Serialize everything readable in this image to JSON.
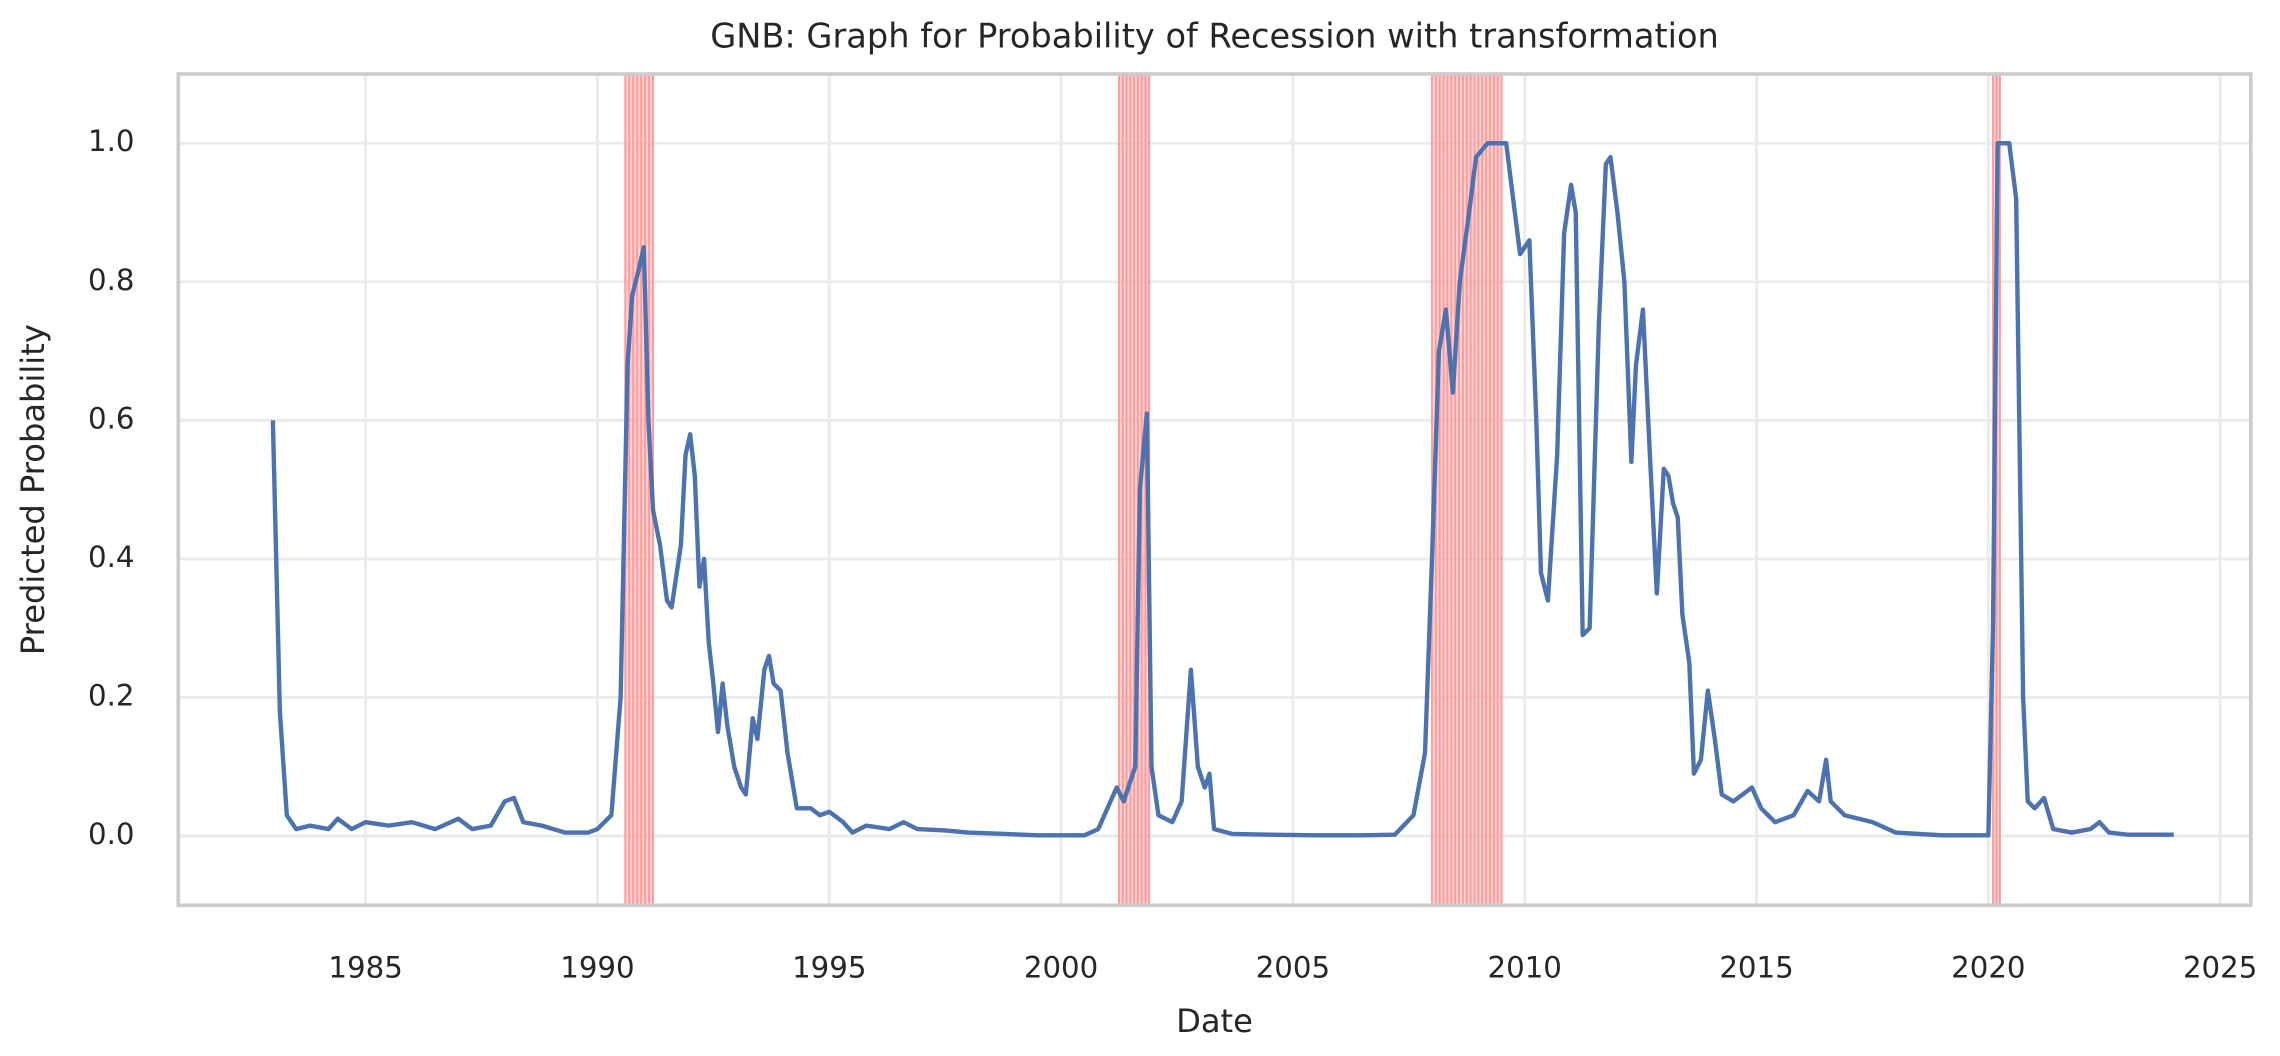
{
  "chart_data": {
    "type": "line",
    "title": "GNB: Graph for Probability of Recession with transformation",
    "x_label": "Date",
    "y_label": "Predicted Probability",
    "xlim": [
      1980.96,
      2025.66
    ],
    "ylim": [
      -0.1,
      1.1
    ],
    "xticks": [
      1985,
      1990,
      1995,
      2000,
      2005,
      2010,
      2015,
      2020,
      2025
    ],
    "yticks": [
      {
        "value": 0,
        "label": "0.0"
      },
      0.2,
      0.4,
      0.6,
      0.8,
      {
        "value": 1,
        "label": "1.0"
      }
    ],
    "grid": true,
    "recession_color": "#ff9a9a",
    "recessions": [
      [
        1990.6,
        1991.2
      ],
      [
        2001.25,
        2001.9
      ],
      [
        2008.0,
        2009.5
      ],
      [
        2020.1,
        2020.25
      ]
    ],
    "x": [
      1983.0,
      1983.15,
      1983.3,
      1983.5,
      1983.8,
      1984.2,
      1984.4,
      1984.7,
      1985.0,
      1985.5,
      1986.0,
      1986.5,
      1987.0,
      1987.3,
      1987.7,
      1988.0,
      1988.2,
      1988.4,
      1988.8,
      1989.3,
      1989.8,
      1990.0,
      1990.3,
      1990.5,
      1990.65,
      1990.75,
      1990.9,
      1991.0,
      1991.1,
      1991.2,
      1991.35,
      1991.5,
      1991.6,
      1991.8,
      1991.9,
      1992.0,
      1992.1,
      1992.2,
      1992.3,
      1992.4,
      1992.5,
      1992.6,
      1992.7,
      1992.8,
      1992.95,
      1993.1,
      1993.2,
      1993.35,
      1993.45,
      1993.6,
      1993.7,
      1993.8,
      1993.95,
      1994.1,
      1994.3,
      1994.6,
      1994.8,
      1995.0,
      1995.3,
      1995.5,
      1995.8,
      1996.3,
      1996.6,
      1996.9,
      1997.5,
      1998.0,
      1998.8,
      1999.5,
      2000.5,
      2000.8,
      2001.0,
      2001.2,
      2001.35,
      2001.6,
      2001.7,
      2001.85,
      2001.95,
      2002.1,
      2002.4,
      2002.6,
      2002.8,
      2002.95,
      2003.1,
      2003.2,
      2003.3,
      2003.7,
      2004.5,
      2005.5,
      2006.5,
      2007.2,
      2007.6,
      2007.85,
      2008.0,
      2008.15,
      2008.3,
      2008.45,
      2008.6,
      2008.8,
      2008.95,
      2009.2,
      2009.6,
      2009.75,
      2009.9,
      2010.1,
      2010.25,
      2010.35,
      2010.5,
      2010.7,
      2010.85,
      2011.0,
      2011.1,
      2011.25,
      2011.4,
      2011.6,
      2011.75,
      2011.85,
      2012.0,
      2012.15,
      2012.3,
      2012.4,
      2012.55,
      2012.7,
      2012.85,
      2013.0,
      2013.1,
      2013.2,
      2013.3,
      2013.4,
      2013.55,
      2013.65,
      2013.8,
      2013.95,
      2014.1,
      2014.25,
      2014.5,
      2014.7,
      2014.9,
      2015.1,
      2015.4,
      2015.8,
      2016.1,
      2016.35,
      2016.5,
      2016.6,
      2016.9,
      2017.5,
      2018.0,
      2019.0,
      2020.0,
      2020.1,
      2020.2,
      2020.45,
      2020.6,
      2020.75,
      2020.85,
      2021.0,
      2021.2,
      2021.4,
      2021.8,
      2022.2,
      2022.4,
      2022.6,
      2023.0,
      2024.0
    ],
    "series": [
      {
        "color": "#4c72b0",
        "values": [
          0.6,
          0.18,
          0.03,
          0.01,
          0.015,
          0.01,
          0.025,
          0.01,
          0.02,
          0.015,
          0.02,
          0.01,
          0.025,
          0.01,
          0.015,
          0.05,
          0.055,
          0.02,
          0.015,
          0.005,
          0.005,
          0.01,
          0.03,
          0.2,
          0.68,
          0.78,
          0.82,
          0.85,
          0.6,
          0.47,
          0.42,
          0.34,
          0.33,
          0.42,
          0.55,
          0.58,
          0.52,
          0.36,
          0.4,
          0.28,
          0.22,
          0.15,
          0.22,
          0.16,
          0.1,
          0.07,
          0.06,
          0.17,
          0.14,
          0.24,
          0.26,
          0.22,
          0.21,
          0.12,
          0.04,
          0.04,
          0.03,
          0.035,
          0.02,
          0.005,
          0.015,
          0.01,
          0.02,
          0.01,
          0.008,
          0.005,
          0.003,
          0.001,
          0.001,
          0.01,
          0.04,
          0.07,
          0.05,
          0.1,
          0.5,
          0.61,
          0.1,
          0.03,
          0.02,
          0.05,
          0.24,
          0.1,
          0.07,
          0.09,
          0.01,
          0.003,
          0.002,
          0.001,
          0.001,
          0.002,
          0.03,
          0.12,
          0.4,
          0.7,
          0.76,
          0.64,
          0.8,
          0.9,
          0.98,
          1.0,
          1.0,
          0.92,
          0.84,
          0.86,
          0.6,
          0.38,
          0.34,
          0.55,
          0.87,
          0.94,
          0.9,
          0.29,
          0.3,
          0.74,
          0.97,
          0.98,
          0.9,
          0.8,
          0.54,
          0.68,
          0.76,
          0.55,
          0.35,
          0.53,
          0.52,
          0.48,
          0.46,
          0.32,
          0.25,
          0.09,
          0.11,
          0.21,
          0.14,
          0.06,
          0.05,
          0.06,
          0.07,
          0.04,
          0.02,
          0.03,
          0.065,
          0.05,
          0.11,
          0.05,
          0.03,
          0.02,
          0.005,
          0.001,
          0.001,
          0.3,
          1.0,
          1.0,
          0.92,
          0.2,
          0.05,
          0.04,
          0.055,
          0.01,
          0.005,
          0.01,
          0.02,
          0.005,
          0.002,
          0.002
        ]
      }
    ]
  }
}
